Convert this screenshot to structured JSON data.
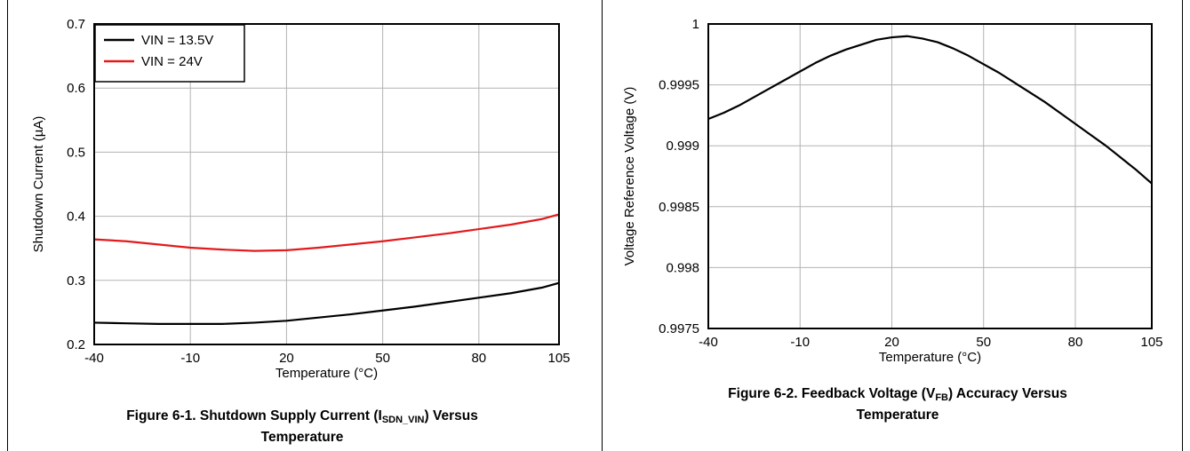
{
  "chart_data": [
    {
      "type": "line",
      "xlabel": "Temperature (°C)",
      "ylabel": "Shutdown Current (µA)",
      "xlim": [
        -40,
        105
      ],
      "ylim": [
        0.2,
        0.7
      ],
      "xticks": [
        -40,
        -10,
        20,
        50,
        80,
        105
      ],
      "yticks": [
        0.2,
        0.3,
        0.4,
        0.5,
        0.6,
        0.7
      ],
      "grid": true,
      "legend_position": "top-left",
      "series": [
        {
          "name": "VIN = 13.5V",
          "color": "#000000",
          "x": [
            -40,
            -30,
            -20,
            -10,
            0,
            10,
            20,
            30,
            40,
            50,
            60,
            70,
            80,
            90,
            100,
            105
          ],
          "y": [
            0.234,
            0.233,
            0.232,
            0.232,
            0.232,
            0.234,
            0.237,
            0.242,
            0.247,
            0.253,
            0.259,
            0.266,
            0.273,
            0.28,
            0.289,
            0.296
          ]
        },
        {
          "name": "VIN = 24V",
          "color": "#e31a1c",
          "x": [
            -40,
            -30,
            -20,
            -10,
            0,
            10,
            20,
            30,
            40,
            50,
            60,
            70,
            80,
            90,
            100,
            105
          ],
          "y": [
            0.364,
            0.361,
            0.356,
            0.351,
            0.348,
            0.346,
            0.347,
            0.351,
            0.356,
            0.361,
            0.367,
            0.373,
            0.38,
            0.387,
            0.396,
            0.403
          ]
        }
      ],
      "caption": {
        "prefix": "Figure 6-1. Shutdown Supply Current (I",
        "subscript": "SDN_VIN",
        "suffix": ") Versus",
        "line2": "Temperature"
      }
    },
    {
      "type": "line",
      "xlabel": "Temperature (°C)",
      "ylabel": "Voltage Reference Voltage (V)",
      "xlim": [
        -40,
        105
      ],
      "ylim": [
        0.9975,
        1.0
      ],
      "xticks": [
        -40,
        -10,
        20,
        50,
        80,
        105
      ],
      "yticks": [
        0.9975,
        0.998,
        0.9985,
        0.999,
        0.9995,
        1.0
      ],
      "ytick_labels": [
        "0.9975",
        "0.998",
        "0.9985",
        "0.999",
        "0.9995",
        "1"
      ],
      "grid": true,
      "series": [
        {
          "color": "#000000",
          "x": [
            -40,
            -35,
            -30,
            -25,
            -20,
            -15,
            -10,
            -5,
            0,
            5,
            10,
            15,
            20,
            25,
            30,
            35,
            40,
            45,
            50,
            55,
            60,
            65,
            70,
            75,
            80,
            85,
            90,
            95,
            100,
            105
          ],
          "y": [
            0.99922,
            0.99927,
            0.99933,
            0.9994,
            0.99947,
            0.99954,
            0.99961,
            0.99968,
            0.99974,
            0.99979,
            0.99983,
            0.99987,
            0.99989,
            0.9999,
            0.99988,
            0.99985,
            0.9998,
            0.99974,
            0.99967,
            0.9996,
            0.99952,
            0.99944,
            0.99936,
            0.99927,
            0.99918,
            0.99909,
            0.999,
            0.9989,
            0.9988,
            0.99869
          ]
        }
      ],
      "caption": {
        "prefix": "Figure 6-2. Feedback Voltage (V",
        "subscript": "FB",
        "suffix": ") Accuracy Versus",
        "line2": "Temperature"
      }
    }
  ]
}
